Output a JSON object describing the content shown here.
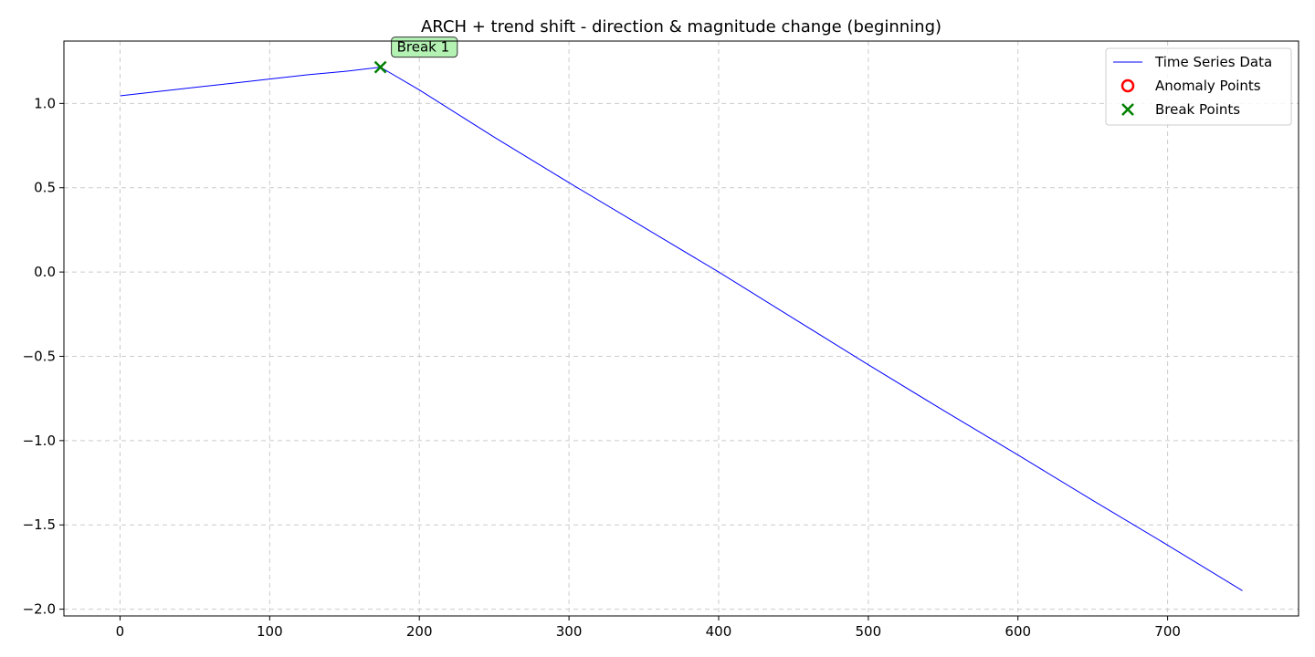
{
  "chart_data": {
    "type": "line",
    "title": "ARCH + trend shift - direction & magnitude change (beginning)",
    "xlabel": "",
    "ylabel": "",
    "xlim": [
      -37.5,
      787.5
    ],
    "ylim": [
      -2.04,
      1.37
    ],
    "xticks": [
      0,
      100,
      200,
      300,
      400,
      500,
      600,
      700
    ],
    "xtick_labels": [
      "0",
      "100",
      "200",
      "300",
      "400",
      "500",
      "600",
      "700"
    ],
    "yticks": [
      1.0,
      0.5,
      0.0,
      -0.5,
      -1.0,
      -1.5,
      -2.0
    ],
    "ytick_labels": [
      "1.0",
      "0.5",
      "0.0",
      "−0.5",
      "−1.0",
      "−1.5",
      "−2.0"
    ],
    "grid": true,
    "legend_position": "top-right",
    "series": [
      {
        "name": "Time Series Data",
        "color": "#0000ff",
        "style": "line",
        "x": [
          0,
          25,
          50,
          75,
          100,
          125,
          150,
          174,
          200,
          250,
          300,
          350,
          400,
          450,
          500,
          550,
          600,
          650,
          700,
          750
        ],
        "y": [
          1.045,
          1.07,
          1.095,
          1.12,
          1.145,
          1.17,
          1.19,
          1.215,
          1.08,
          0.8,
          0.53,
          0.265,
          0.0,
          -0.275,
          -0.55,
          -0.82,
          -1.085,
          -1.355,
          -1.62,
          -1.89
        ]
      },
      {
        "name": "Anomaly Points",
        "color": "#ff0000",
        "style": "marker-circle",
        "x": [],
        "y": []
      },
      {
        "name": "Break Points",
        "color": "#008000",
        "style": "marker-x",
        "x": [
          174
        ],
        "y": [
          1.215
        ]
      }
    ],
    "annotations": [
      {
        "text": "Break 1",
        "x": 174,
        "y": 1.215,
        "color": "#b3f2b3"
      }
    ]
  }
}
